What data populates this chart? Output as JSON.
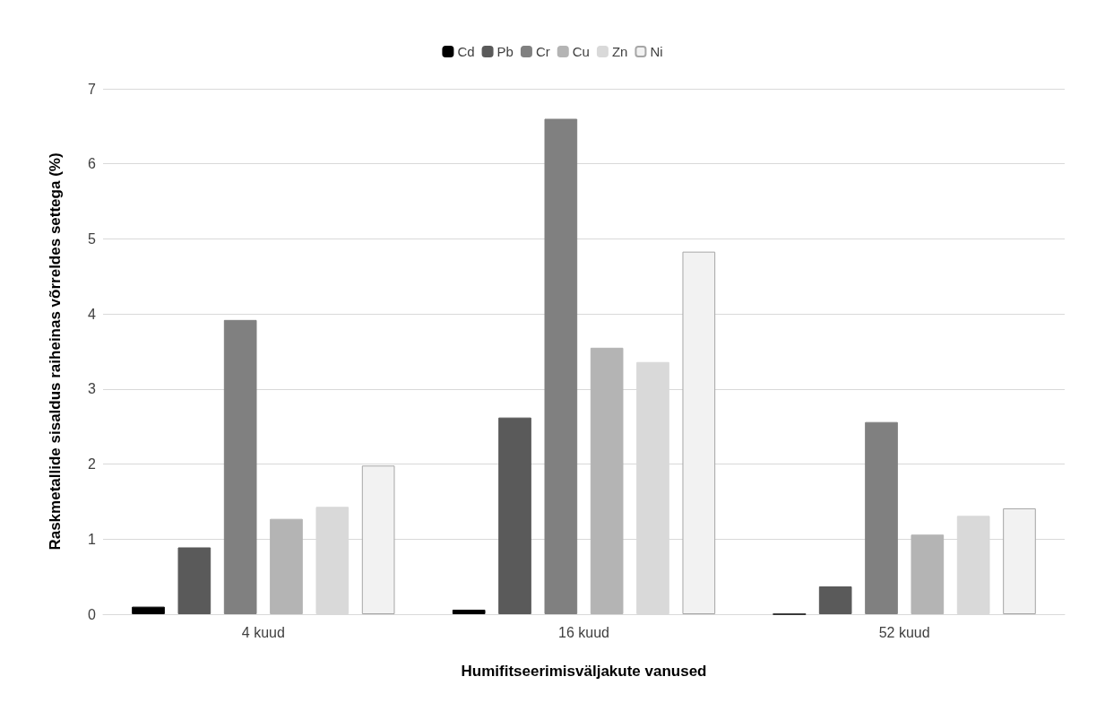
{
  "chart_data": {
    "type": "bar",
    "xlabel": "Humifitseerimisväljakute vanused",
    "ylabel": "Raskmetallide sisaldus raiheinas võrreldes settega (%)",
    "categories": [
      "4 kuud",
      "16 kuud",
      "52 kuud"
    ],
    "series": [
      {
        "name": "Cd",
        "color": "#000000",
        "values": [
          0.1,
          0.06,
          0
        ]
      },
      {
        "name": "Pb",
        "color": "#5a5a5a",
        "values": [
          0.89,
          2.62,
          0.37
        ]
      },
      {
        "name": "Cr",
        "color": "#808080",
        "values": [
          3.92,
          6.6,
          2.56
        ]
      },
      {
        "name": "Cu",
        "color": "#b4b4b4",
        "values": [
          1.27,
          3.55,
          1.06
        ]
      },
      {
        "name": "Zn",
        "color": "#d9d9d9",
        "values": [
          1.43,
          3.36,
          1.31
        ]
      },
      {
        "name": "Ni",
        "color": "#f2f2f2",
        "values": [
          1.98,
          4.83,
          1.41
        ]
      }
    ],
    "ylim": [
      0,
      7
    ],
    "yticks": [
      0,
      1,
      2,
      3,
      4,
      5,
      6,
      7
    ],
    "grid": "y",
    "legend": "top"
  }
}
